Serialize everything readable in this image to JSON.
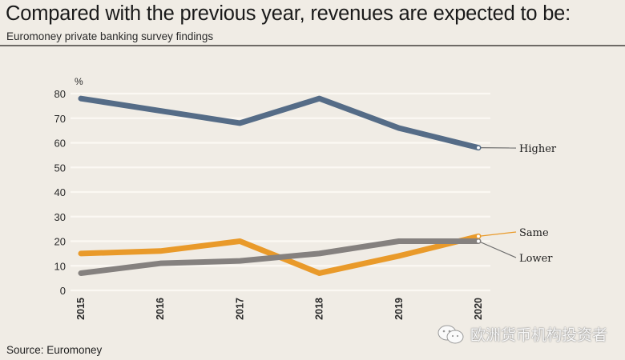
{
  "header": {
    "title": "Compared with the previous year, revenues are expected to be:",
    "subtitle": "Euromoney private banking survey findings"
  },
  "footer": {
    "source": "Source: Euromoney"
  },
  "watermark": {
    "icon": "wechat-icon",
    "text": "欧洲货币机构投资者"
  },
  "chart_data": {
    "type": "line",
    "title": "Compared with the previous year, revenues are expected to be:",
    "subtitle": "Euromoney private banking survey findings",
    "xlabel": "",
    "ylabel": "%",
    "x": [
      "2015",
      "2016",
      "2017",
      "2018",
      "2019",
      "2020"
    ],
    "ylim": [
      0,
      80
    ],
    "yticks": [
      0,
      10,
      20,
      30,
      40,
      50,
      60,
      70,
      80
    ],
    "grid": true,
    "legend": "direct-labels-right",
    "series": [
      {
        "name": "Higher",
        "color": "#556c87",
        "values": [
          78,
          73,
          68,
          78,
          66,
          58
        ]
      },
      {
        "name": "Same",
        "color": "#e99a2a",
        "values": [
          15,
          16,
          20,
          7,
          14,
          22
        ]
      },
      {
        "name": "Lower",
        "color": "#85817f",
        "values": [
          7,
          11,
          12,
          15,
          20,
          20
        ]
      }
    ]
  }
}
